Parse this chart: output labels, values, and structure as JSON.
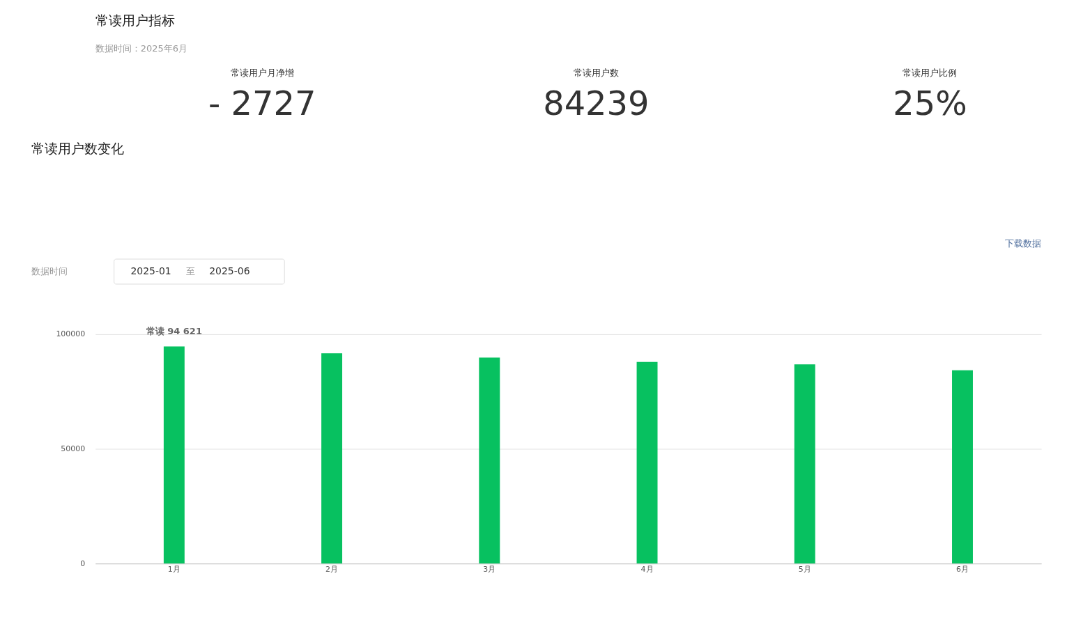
{
  "chart_data": [
    {
      "type": "other",
      "title": "常读用户指标",
      "subtitle": "数据时间：2025年6月",
      "annotations": [
        "常读用户月净增",
        "- 2727",
        "常读用户数",
        "84239",
        "常读用户比例",
        "25%"
      ]
    },
    {
      "type": "bar",
      "title": "常读用户数变化",
      "categories": [
        "1月",
        "2月",
        "3月",
        "4月",
        "5月",
        "6月"
      ],
      "values": [
        94621,
        91700,
        89800,
        87900,
        86800,
        84239
      ],
      "color": "#07c160",
      "ylim": [
        0,
        100000
      ],
      "yticks": [
        0,
        50000,
        100000
      ],
      "grid": "y",
      "annotations": [
        "下载数据",
        "数据时间",
        "2025-01",
        "至",
        "2025-06",
        {
          "text": "常读 94 621",
          "x": "1月",
          "y": 94621
        }
      ]
    }
  ]
}
